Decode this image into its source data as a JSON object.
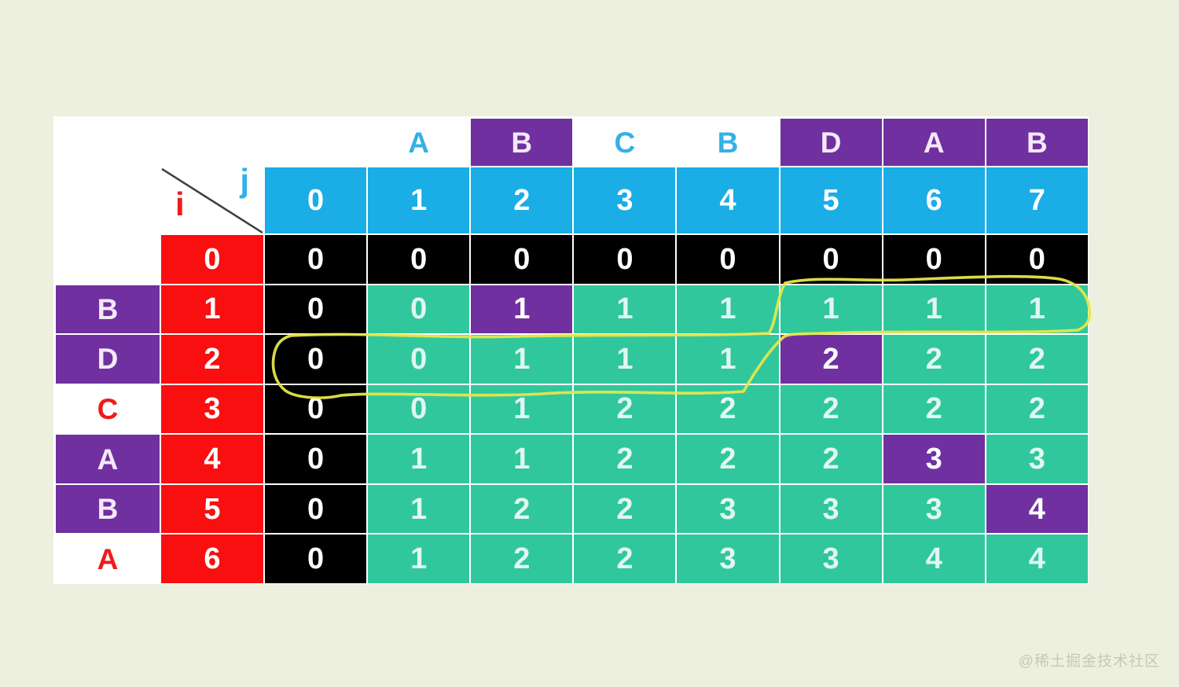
{
  "watermark": "@稀土掘金技术社区",
  "axis": {
    "i": "i",
    "j": "j"
  },
  "top_letters": [
    {
      "ch": "A",
      "hl": false
    },
    {
      "ch": "B",
      "hl": true
    },
    {
      "ch": "C",
      "hl": false
    },
    {
      "ch": "B",
      "hl": false
    },
    {
      "ch": "D",
      "hl": true
    },
    {
      "ch": "A",
      "hl": true
    },
    {
      "ch": "B",
      "hl": true
    }
  ],
  "j_indices": [
    "0",
    "1",
    "2",
    "3",
    "4",
    "5",
    "6",
    "7"
  ],
  "rows": [
    {
      "letter": "",
      "letter_hl": false,
      "index": "0",
      "cells": [
        {
          "v": "0",
          "t": "k"
        },
        {
          "v": "0",
          "t": "k"
        },
        {
          "v": "0",
          "t": "k"
        },
        {
          "v": "0",
          "t": "k"
        },
        {
          "v": "0",
          "t": "k"
        },
        {
          "v": "0",
          "t": "k"
        },
        {
          "v": "0",
          "t": "k"
        },
        {
          "v": "0",
          "t": "k"
        }
      ]
    },
    {
      "letter": "B",
      "letter_hl": true,
      "index": "1",
      "cells": [
        {
          "v": "0",
          "t": "k"
        },
        {
          "v": "0",
          "t": "t"
        },
        {
          "v": "1",
          "t": "p"
        },
        {
          "v": "1",
          "t": "t"
        },
        {
          "v": "1",
          "t": "t"
        },
        {
          "v": "1",
          "t": "t"
        },
        {
          "v": "1",
          "t": "t"
        },
        {
          "v": "1",
          "t": "t"
        }
      ]
    },
    {
      "letter": "D",
      "letter_hl": true,
      "index": "2",
      "cells": [
        {
          "v": "0",
          "t": "k"
        },
        {
          "v": "0",
          "t": "t"
        },
        {
          "v": "1",
          "t": "t"
        },
        {
          "v": "1",
          "t": "t"
        },
        {
          "v": "1",
          "t": "t"
        },
        {
          "v": "2",
          "t": "p"
        },
        {
          "v": "2",
          "t": "t"
        },
        {
          "v": "2",
          "t": "t"
        }
      ]
    },
    {
      "letter": "C",
      "letter_hl": false,
      "index": "3",
      "cells": [
        {
          "v": "0",
          "t": "k"
        },
        {
          "v": "0",
          "t": "t"
        },
        {
          "v": "1",
          "t": "t"
        },
        {
          "v": "2",
          "t": "t"
        },
        {
          "v": "2",
          "t": "t"
        },
        {
          "v": "2",
          "t": "t"
        },
        {
          "v": "2",
          "t": "t"
        },
        {
          "v": "2",
          "t": "t"
        }
      ]
    },
    {
      "letter": "A",
      "letter_hl": true,
      "index": "4",
      "cells": [
        {
          "v": "0",
          "t": "k"
        },
        {
          "v": "1",
          "t": "t"
        },
        {
          "v": "1",
          "t": "t"
        },
        {
          "v": "2",
          "t": "t"
        },
        {
          "v": "2",
          "t": "t"
        },
        {
          "v": "2",
          "t": "t"
        },
        {
          "v": "3",
          "t": "p"
        },
        {
          "v": "3",
          "t": "t"
        }
      ]
    },
    {
      "letter": "B",
      "letter_hl": true,
      "index": "5",
      "cells": [
        {
          "v": "0",
          "t": "k"
        },
        {
          "v": "1",
          "t": "t"
        },
        {
          "v": "2",
          "t": "t"
        },
        {
          "v": "2",
          "t": "t"
        },
        {
          "v": "3",
          "t": "t"
        },
        {
          "v": "3",
          "t": "t"
        },
        {
          "v": "3",
          "t": "t"
        },
        {
          "v": "4",
          "t": "p"
        }
      ]
    },
    {
      "letter": "A",
      "letter_hl": false,
      "index": "6",
      "cells": [
        {
          "v": "0",
          "t": "k"
        },
        {
          "v": "1",
          "t": "t"
        },
        {
          "v": "2",
          "t": "t"
        },
        {
          "v": "2",
          "t": "t"
        },
        {
          "v": "3",
          "t": "t"
        },
        {
          "v": "3",
          "t": "t"
        },
        {
          "v": "4",
          "t": "t"
        },
        {
          "v": "4",
          "t": "t"
        }
      ]
    }
  ],
  "colors": {
    "page_bg": "#eef0df",
    "panel_bg": "#ffffff",
    "cyan": "#1aade6",
    "red": "#f90f0f",
    "purple": "#7030a0",
    "teal": "#31c79c",
    "black": "#000000",
    "yellow": "#e5e74a",
    "blue_letter": "#33b1e6",
    "red_letter": "#ed1c1c",
    "teal_text": "#e0f7ef",
    "purple_letter_text": "#f3e9fa",
    "white_text": "#ffffff",
    "watermark_text": "#c6c8b8",
    "diagonal": "#3e3e3e"
  }
}
